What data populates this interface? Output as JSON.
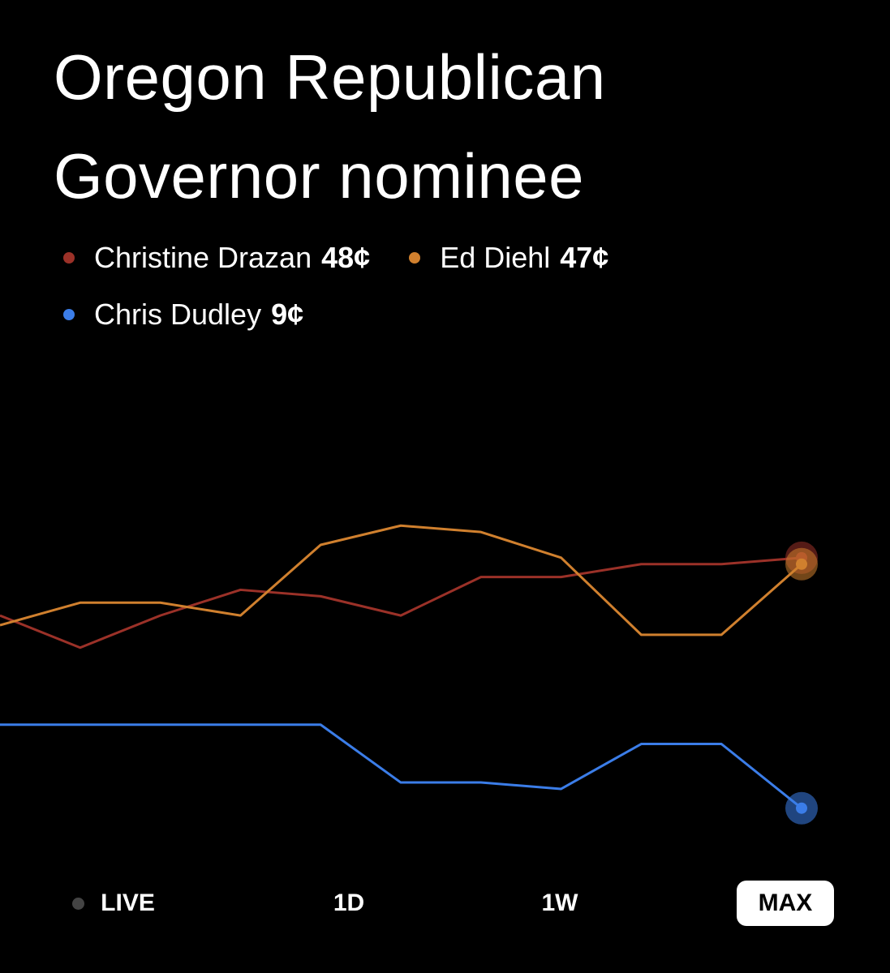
{
  "chart_data": {
    "type": "line",
    "title": "Oregon Republican Governor nominee",
    "ylim": [
      0,
      100
    ],
    "series": [
      {
        "name": "Christine Drazan",
        "color": "#9b3128",
        "values": [
          39,
          34,
          39,
          43,
          42,
          39,
          45,
          45,
          47,
          47,
          48
        ],
        "value_labels": [
          null,
          null,
          null,
          null,
          null,
          null,
          null,
          null,
          null,
          null,
          "48¢"
        ]
      },
      {
        "name": "Ed Diehl",
        "color": "#d0802e",
        "values": [
          37.5,
          41,
          41,
          39,
          50,
          53,
          52,
          48,
          36,
          36,
          47
        ],
        "value_labels": [
          null,
          null,
          null,
          null,
          null,
          null,
          null,
          null,
          null,
          null,
          "47¢"
        ]
      },
      {
        "name": "Chris Dudley",
        "color": "#3b7de8",
        "values": [
          22,
          22,
          22,
          22,
          22,
          13,
          13,
          12,
          19,
          19,
          9
        ],
        "value_labels": [
          null,
          null,
          null,
          null,
          null,
          null,
          null,
          null,
          null,
          null,
          "9¢"
        ]
      }
    ]
  },
  "controls": {
    "buttons": [
      "LIVE",
      "1D",
      "1W",
      "MAX"
    ],
    "selected": "MAX"
  }
}
